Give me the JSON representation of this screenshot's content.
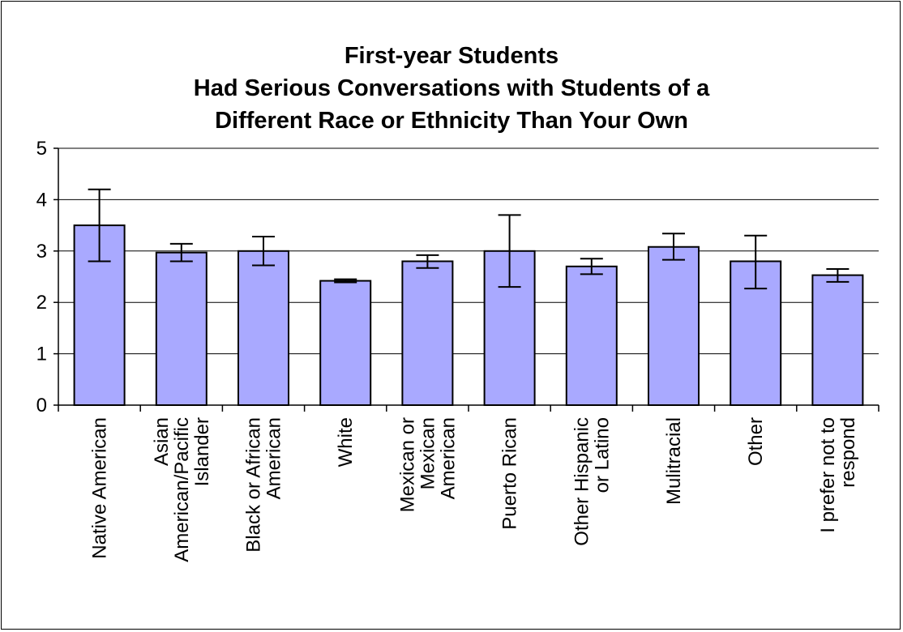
{
  "chart_data": {
    "type": "bar",
    "title_lines": [
      "First-year Students",
      "Had Serious Conversations with Students of a",
      "Different Race or Ethnicity Than Your Own"
    ],
    "categories": [
      [
        "Native American"
      ],
      [
        "Asian",
        "American/Pacific",
        "Islander"
      ],
      [
        "Black or African",
        "American"
      ],
      [
        "White"
      ],
      [
        "Mexican or",
        "Mexican",
        "American"
      ],
      [
        "Puerto Rican"
      ],
      [
        "Other Hispanic",
        "or Latino"
      ],
      [
        "Mulitracial"
      ],
      [
        "Other"
      ],
      [
        "I prefer not to",
        "respond"
      ]
    ],
    "values": [
      3.5,
      2.97,
      3.0,
      2.42,
      2.8,
      3.0,
      2.7,
      3.08,
      2.8,
      2.53
    ],
    "error_low": [
      2.8,
      2.8,
      2.72,
      2.39,
      2.67,
      2.3,
      2.55,
      2.83,
      2.27,
      2.4
    ],
    "error_high": [
      4.2,
      3.14,
      3.28,
      2.45,
      2.92,
      3.7,
      2.85,
      3.34,
      3.3,
      2.65
    ],
    "yticks": [
      "0",
      "1",
      "2",
      "3",
      "4",
      "5"
    ],
    "ylim": [
      0,
      5
    ],
    "grid": true,
    "legend": "none",
    "bar_color": "#a9a9ff"
  }
}
